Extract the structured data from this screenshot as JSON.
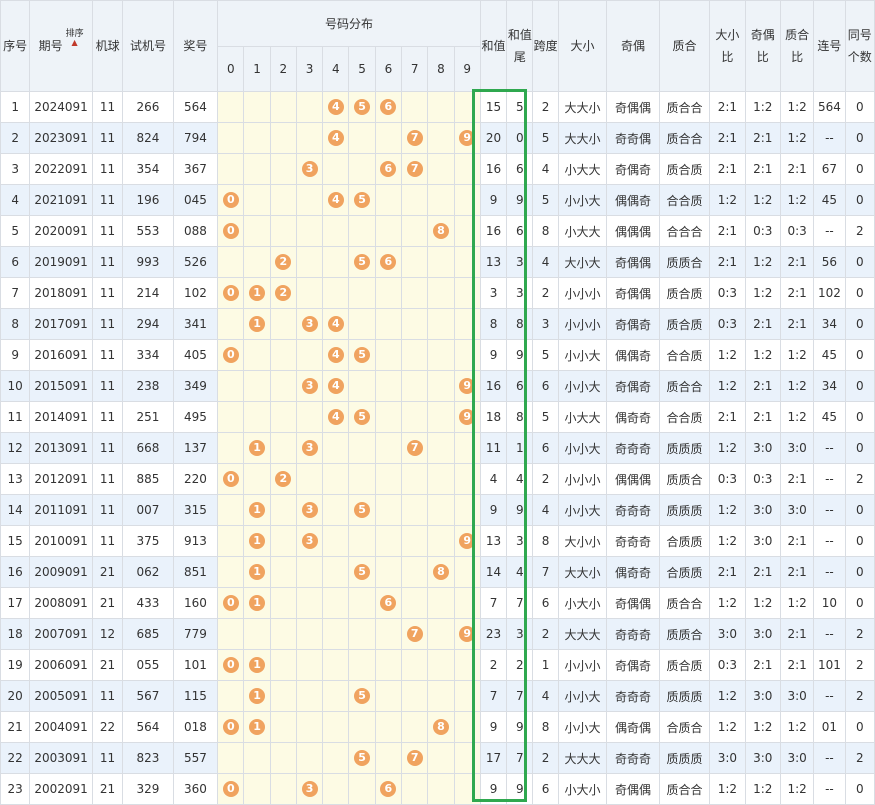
{
  "header": {
    "seq": "序号",
    "period": "期号",
    "sort_label": "排序",
    "machine": "机球",
    "test": "试机号",
    "prize": "奖号",
    "dist": "号码分布",
    "digits": [
      "0",
      "1",
      "2",
      "3",
      "4",
      "5",
      "6",
      "7",
      "8",
      "9"
    ],
    "sum": "和值",
    "sum_tail": "和值尾",
    "span": "跨度",
    "size": "大小",
    "parity": "奇偶",
    "prime": "质合",
    "size_ratio": "大小比",
    "parity_ratio": "奇偶比",
    "prime_ratio": "质合比",
    "consec": "连号",
    "same": "同号个数"
  },
  "rows": [
    {
      "seq": "1",
      "period": "2024091",
      "machine": "11",
      "test": "266",
      "prize": "564",
      "balls": [
        4,
        5,
        6
      ],
      "sum": "15",
      "tail": "5",
      "span": "2",
      "size": "大大小",
      "parity": "奇偶偶",
      "prime": "质合合",
      "sr": "2:1",
      "pr": "1:2",
      "qr": "1:2",
      "consec": "564",
      "same": "0"
    },
    {
      "seq": "2",
      "period": "2023091",
      "machine": "11",
      "test": "824",
      "prize": "794",
      "balls": [
        4,
        7,
        9
      ],
      "sum": "20",
      "tail": "0",
      "span": "5",
      "size": "大大小",
      "parity": "奇奇偶",
      "prime": "质合合",
      "sr": "2:1",
      "pr": "2:1",
      "qr": "1:2",
      "consec": "--",
      "same": "0"
    },
    {
      "seq": "3",
      "period": "2022091",
      "machine": "11",
      "test": "354",
      "prize": "367",
      "balls": [
        3,
        6,
        7
      ],
      "sum": "16",
      "tail": "6",
      "span": "4",
      "size": "小大大",
      "parity": "奇偶奇",
      "prime": "质合质",
      "sr": "2:1",
      "pr": "2:1",
      "qr": "2:1",
      "consec": "67",
      "same": "0"
    },
    {
      "seq": "4",
      "period": "2021091",
      "machine": "11",
      "test": "196",
      "prize": "045",
      "balls": [
        0,
        4,
        5
      ],
      "sum": "9",
      "tail": "9",
      "span": "5",
      "size": "小小大",
      "parity": "偶偶奇",
      "prime": "合合质",
      "sr": "1:2",
      "pr": "1:2",
      "qr": "1:2",
      "consec": "45",
      "same": "0"
    },
    {
      "seq": "5",
      "period": "2020091",
      "machine": "11",
      "test": "553",
      "prize": "088",
      "balls": [
        0,
        8
      ],
      "sum": "16",
      "tail": "6",
      "span": "8",
      "size": "小大大",
      "parity": "偶偶偶",
      "prime": "合合合",
      "sr": "2:1",
      "pr": "0:3",
      "qr": "0:3",
      "consec": "--",
      "same": "2"
    },
    {
      "seq": "6",
      "period": "2019091",
      "machine": "11",
      "test": "993",
      "prize": "526",
      "balls": [
        2,
        5,
        6
      ],
      "sum": "13",
      "tail": "3",
      "span": "4",
      "size": "大小大",
      "parity": "奇偶偶",
      "prime": "质质合",
      "sr": "2:1",
      "pr": "1:2",
      "qr": "2:1",
      "consec": "56",
      "same": "0"
    },
    {
      "seq": "7",
      "period": "2018091",
      "machine": "11",
      "test": "214",
      "prize": "102",
      "balls": [
        0,
        1,
        2
      ],
      "sum": "3",
      "tail": "3",
      "span": "2",
      "size": "小小小",
      "parity": "奇偶偶",
      "prime": "质合质",
      "sr": "0:3",
      "pr": "1:2",
      "qr": "2:1",
      "consec": "102",
      "same": "0"
    },
    {
      "seq": "8",
      "period": "2017091",
      "machine": "11",
      "test": "294",
      "prize": "341",
      "balls": [
        1,
        3,
        4
      ],
      "sum": "8",
      "tail": "8",
      "span": "3",
      "size": "小小小",
      "parity": "奇偶奇",
      "prime": "质合质",
      "sr": "0:3",
      "pr": "2:1",
      "qr": "2:1",
      "consec": "34",
      "same": "0"
    },
    {
      "seq": "9",
      "period": "2016091",
      "machine": "11",
      "test": "334",
      "prize": "405",
      "balls": [
        0,
        4,
        5
      ],
      "sum": "9",
      "tail": "9",
      "span": "5",
      "size": "小小大",
      "parity": "偶偶奇",
      "prime": "合合质",
      "sr": "1:2",
      "pr": "1:2",
      "qr": "1:2",
      "consec": "45",
      "same": "0"
    },
    {
      "seq": "10",
      "period": "2015091",
      "machine": "11",
      "test": "238",
      "prize": "349",
      "balls": [
        3,
        4,
        9
      ],
      "sum": "16",
      "tail": "6",
      "span": "6",
      "size": "小小大",
      "parity": "奇偶奇",
      "prime": "质合合",
      "sr": "1:2",
      "pr": "2:1",
      "qr": "1:2",
      "consec": "34",
      "same": "0"
    },
    {
      "seq": "11",
      "period": "2014091",
      "machine": "11",
      "test": "251",
      "prize": "495",
      "balls": [
        4,
        5,
        9
      ],
      "sum": "18",
      "tail": "8",
      "span": "5",
      "size": "小大大",
      "parity": "偶奇奇",
      "prime": "合合质",
      "sr": "2:1",
      "pr": "2:1",
      "qr": "1:2",
      "consec": "45",
      "same": "0"
    },
    {
      "seq": "12",
      "period": "2013091",
      "machine": "11",
      "test": "668",
      "prize": "137",
      "balls": [
        1,
        3,
        7
      ],
      "sum": "11",
      "tail": "1",
      "span": "6",
      "size": "小小大",
      "parity": "奇奇奇",
      "prime": "质质质",
      "sr": "1:2",
      "pr": "3:0",
      "qr": "3:0",
      "consec": "--",
      "same": "0"
    },
    {
      "seq": "13",
      "period": "2012091",
      "machine": "11",
      "test": "885",
      "prize": "220",
      "balls": [
        0,
        2
      ],
      "sum": "4",
      "tail": "4",
      "span": "2",
      "size": "小小小",
      "parity": "偶偶偶",
      "prime": "质质合",
      "sr": "0:3",
      "pr": "0:3",
      "qr": "2:1",
      "consec": "--",
      "same": "2"
    },
    {
      "seq": "14",
      "period": "2011091",
      "machine": "11",
      "test": "007",
      "prize": "315",
      "balls": [
        1,
        3,
        5
      ],
      "sum": "9",
      "tail": "9",
      "span": "4",
      "size": "小小大",
      "parity": "奇奇奇",
      "prime": "质质质",
      "sr": "1:2",
      "pr": "3:0",
      "qr": "3:0",
      "consec": "--",
      "same": "0"
    },
    {
      "seq": "15",
      "period": "2010091",
      "machine": "11",
      "test": "375",
      "prize": "913",
      "balls": [
        1,
        3,
        9
      ],
      "sum": "13",
      "tail": "3",
      "span": "8",
      "size": "大小小",
      "parity": "奇奇奇",
      "prime": "合质质",
      "sr": "1:2",
      "pr": "3:0",
      "qr": "2:1",
      "consec": "--",
      "same": "0"
    },
    {
      "seq": "16",
      "period": "2009091",
      "machine": "21",
      "test": "062",
      "prize": "851",
      "balls": [
        1,
        5,
        8
      ],
      "sum": "14",
      "tail": "4",
      "span": "7",
      "size": "大大小",
      "parity": "偶奇奇",
      "prime": "合质质",
      "sr": "2:1",
      "pr": "2:1",
      "qr": "2:1",
      "consec": "--",
      "same": "0"
    },
    {
      "seq": "17",
      "period": "2008091",
      "machine": "21",
      "test": "433",
      "prize": "160",
      "balls": [
        0,
        1,
        6
      ],
      "sum": "7",
      "tail": "7",
      "span": "6",
      "size": "小大小",
      "parity": "奇偶偶",
      "prime": "质合合",
      "sr": "1:2",
      "pr": "1:2",
      "qr": "1:2",
      "consec": "10",
      "same": "0"
    },
    {
      "seq": "18",
      "period": "2007091",
      "machine": "12",
      "test": "685",
      "prize": "779",
      "balls": [
        7,
        9
      ],
      "sum": "23",
      "tail": "3",
      "span": "2",
      "size": "大大大",
      "parity": "奇奇奇",
      "prime": "质质合",
      "sr": "3:0",
      "pr": "3:0",
      "qr": "2:1",
      "consec": "--",
      "same": "2"
    },
    {
      "seq": "19",
      "period": "2006091",
      "machine": "21",
      "test": "055",
      "prize": "101",
      "balls": [
        0,
        1
      ],
      "sum": "2",
      "tail": "2",
      "span": "1",
      "size": "小小小",
      "parity": "奇偶奇",
      "prime": "质合质",
      "sr": "0:3",
      "pr": "2:1",
      "qr": "2:1",
      "consec": "101",
      "same": "2"
    },
    {
      "seq": "20",
      "period": "2005091",
      "machine": "11",
      "test": "567",
      "prize": "115",
      "balls": [
        1,
        5
      ],
      "sum": "7",
      "tail": "7",
      "span": "4",
      "size": "小小大",
      "parity": "奇奇奇",
      "prime": "质质质",
      "sr": "1:2",
      "pr": "3:0",
      "qr": "3:0",
      "consec": "--",
      "same": "2"
    },
    {
      "seq": "21",
      "period": "2004091",
      "machine": "22",
      "test": "564",
      "prize": "018",
      "balls": [
        0,
        1,
        8
      ],
      "sum": "9",
      "tail": "9",
      "span": "8",
      "size": "小小大",
      "parity": "偶奇偶",
      "prime": "合质合",
      "sr": "1:2",
      "pr": "1:2",
      "qr": "1:2",
      "consec": "01",
      "same": "0"
    },
    {
      "seq": "22",
      "period": "2003091",
      "machine": "11",
      "test": "823",
      "prize": "557",
      "balls": [
        5,
        7
      ],
      "sum": "17",
      "tail": "7",
      "span": "2",
      "size": "大大大",
      "parity": "奇奇奇",
      "prime": "质质质",
      "sr": "3:0",
      "pr": "3:0",
      "qr": "3:0",
      "consec": "--",
      "same": "2"
    },
    {
      "seq": "23",
      "period": "2002091",
      "machine": "21",
      "test": "329",
      "prize": "360",
      "balls": [
        0,
        3,
        6
      ],
      "sum": "9",
      "tail": "9",
      "span": "6",
      "size": "小大小",
      "parity": "奇偶偶",
      "prime": "质合合",
      "sr": "1:2",
      "pr": "1:2",
      "qr": "1:2",
      "consec": "--",
      "same": "0"
    }
  ],
  "colors": {
    "ball": "#f0a35f",
    "highlight": "#2fa84f",
    "header_bg": "#eef3f8",
    "row_alt": "#eaf2fb",
    "dist_bg": "#fdfbe4"
  }
}
